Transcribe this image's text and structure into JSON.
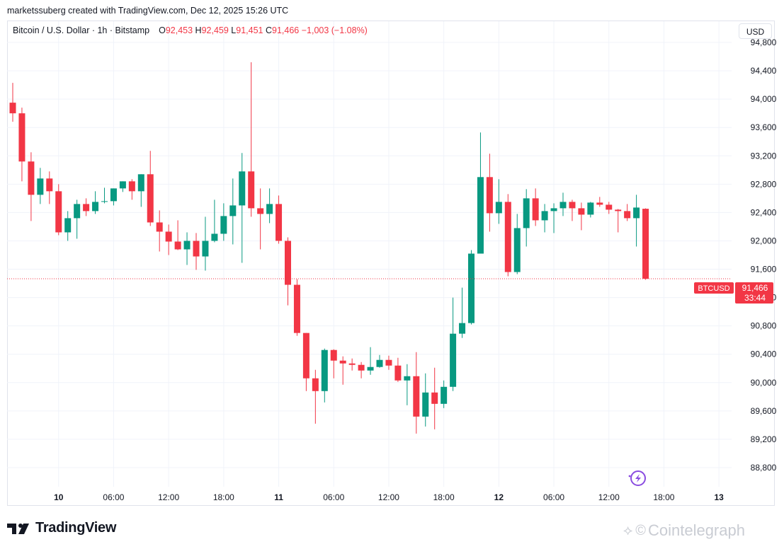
{
  "attribution": "marketssuberg created with TradingView.com, Dec 12, 2025 15:26 UTC",
  "legend": {
    "symbol": "Bitcoin / U.S. Dollar · 1h · Bitstamp",
    "o_label": "O",
    "o_value": "92,453",
    "h_label": "H",
    "h_value": "92,459",
    "l_label": "L",
    "l_value": "91,451",
    "c_label": "C",
    "c_value": "91,466",
    "change": "−1,003 (−1.08%)"
  },
  "currency_button": "USD",
  "price_tag": {
    "symbol": "BTCUSD",
    "price": "91,466",
    "countdown": "33:44"
  },
  "footer": {
    "brand": "TradingView",
    "watermark": "Cointelegraph"
  },
  "colors": {
    "up": "#089981",
    "down": "#f23645",
    "grid": "#f0f3fa",
    "text": "#131722",
    "watermark": "#c9ccd3",
    "badge": "#8a4ce0"
  },
  "icons": {
    "tv_logo": "tradingview-logo-icon",
    "lightning": "lightning-badge-icon",
    "ct": "cointelegraph-icon"
  },
  "chart_data": {
    "type": "candlestick",
    "title": "Bitcoin / U.S. Dollar · 1h · Bitstamp",
    "ylim": [
      88600,
      94800
    ],
    "y_ticks": [
      88800,
      89200,
      89600,
      90000,
      90400,
      90800,
      91200,
      91600,
      92000,
      92400,
      92800,
      93200,
      93600,
      94000,
      94400,
      94800
    ],
    "y_tick_labels": [
      "88,800",
      "89,200",
      "89,600",
      "90,000",
      "90,400",
      "90,800",
      "91,200",
      "91,600",
      "92,000",
      "92,400",
      "92,800",
      "93,200",
      "93,600",
      "94,000",
      "94,400",
      "94,800"
    ],
    "x_ticks": [
      {
        "label": "10",
        "bold": true,
        "bar": 5
      },
      {
        "label": "06:00",
        "bold": false,
        "bar": 11
      },
      {
        "label": "12:00",
        "bold": false,
        "bar": 17
      },
      {
        "label": "18:00",
        "bold": false,
        "bar": 23
      },
      {
        "label": "11",
        "bold": true,
        "bar": 29
      },
      {
        "label": "06:00",
        "bold": false,
        "bar": 35
      },
      {
        "label": "12:00",
        "bold": false,
        "bar": 41
      },
      {
        "label": "18:00",
        "bold": false,
        "bar": 47
      },
      {
        "label": "12",
        "bold": true,
        "bar": 53
      },
      {
        "label": "06:00",
        "bold": false,
        "bar": 59
      },
      {
        "label": "12:00",
        "bold": false,
        "bar": 65
      },
      {
        "label": "18:00",
        "bold": false,
        "bar": 71
      },
      {
        "label": "13",
        "bold": true,
        "bar": 77
      }
    ],
    "last_price": 91466,
    "candles": [
      {
        "o": 93950,
        "h": 94230,
        "l": 93680,
        "c": 93800
      },
      {
        "o": 93800,
        "h": 93880,
        "l": 92840,
        "c": 93120
      },
      {
        "o": 93120,
        "h": 93250,
        "l": 92280,
        "c": 92650
      },
      {
        "o": 92650,
        "h": 93030,
        "l": 92520,
        "c": 92880
      },
      {
        "o": 92880,
        "h": 92980,
        "l": 92520,
        "c": 92700
      },
      {
        "o": 92700,
        "h": 92800,
        "l": 92080,
        "c": 92120
      },
      {
        "o": 92120,
        "h": 92420,
        "l": 92000,
        "c": 92320
      },
      {
        "o": 92320,
        "h": 92580,
        "l": 92030,
        "c": 92520
      },
      {
        "o": 92520,
        "h": 92600,
        "l": 92350,
        "c": 92420
      },
      {
        "o": 92420,
        "h": 92700,
        "l": 92380,
        "c": 92550
      },
      {
        "o": 92550,
        "h": 92750,
        "l": 92530,
        "c": 92560
      },
      {
        "o": 92560,
        "h": 92740,
        "l": 92500,
        "c": 92740
      },
      {
        "o": 92740,
        "h": 92840,
        "l": 92690,
        "c": 92840
      },
      {
        "o": 92840,
        "h": 92870,
        "l": 92580,
        "c": 92700
      },
      {
        "o": 92700,
        "h": 92940,
        "l": 92480,
        "c": 92940
      },
      {
        "o": 92940,
        "h": 93270,
        "l": 92210,
        "c": 92260
      },
      {
        "o": 92260,
        "h": 92430,
        "l": 91850,
        "c": 92130
      },
      {
        "o": 92130,
        "h": 92230,
        "l": 91800,
        "c": 91990
      },
      {
        "o": 91990,
        "h": 92290,
        "l": 91870,
        "c": 91880
      },
      {
        "o": 91880,
        "h": 92120,
        "l": 91660,
        "c": 92000
      },
      {
        "o": 92000,
        "h": 92110,
        "l": 91590,
        "c": 91780
      },
      {
        "o": 91780,
        "h": 92340,
        "l": 91580,
        "c": 92000
      },
      {
        "o": 92000,
        "h": 92580,
        "l": 91980,
        "c": 92100
      },
      {
        "o": 92100,
        "h": 92530,
        "l": 92000,
        "c": 92350
      },
      {
        "o": 92350,
        "h": 92880,
        "l": 91950,
        "c": 92500
      },
      {
        "o": 92500,
        "h": 93240,
        "l": 91690,
        "c": 92980
      },
      {
        "o": 92980,
        "h": 94520,
        "l": 92340,
        "c": 92460
      },
      {
        "o": 92460,
        "h": 92740,
        "l": 91880,
        "c": 92380
      },
      {
        "o": 92380,
        "h": 92740,
        "l": 92250,
        "c": 92520
      },
      {
        "o": 92520,
        "h": 92640,
        "l": 91960,
        "c": 92000
      },
      {
        "o": 92000,
        "h": 92050,
        "l": 91090,
        "c": 91380
      },
      {
        "o": 91380,
        "h": 91460,
        "l": 90660,
        "c": 90700
      },
      {
        "o": 90700,
        "h": 90700,
        "l": 89880,
        "c": 90060
      },
      {
        "o": 90060,
        "h": 90180,
        "l": 89420,
        "c": 89880
      },
      {
        "o": 89880,
        "h": 90480,
        "l": 89720,
        "c": 90460
      },
      {
        "o": 90460,
        "h": 90470,
        "l": 90060,
        "c": 90310
      },
      {
        "o": 90310,
        "h": 90370,
        "l": 89970,
        "c": 90270
      },
      {
        "o": 90270,
        "h": 90340,
        "l": 90170,
        "c": 90250
      },
      {
        "o": 90250,
        "h": 90290,
        "l": 90060,
        "c": 90170
      },
      {
        "o": 90170,
        "h": 90500,
        "l": 90110,
        "c": 90220
      },
      {
        "o": 90220,
        "h": 90390,
        "l": 90210,
        "c": 90320
      },
      {
        "o": 90320,
        "h": 90380,
        "l": 90180,
        "c": 90240
      },
      {
        "o": 90240,
        "h": 90350,
        "l": 90010,
        "c": 90030
      },
      {
        "o": 90030,
        "h": 90260,
        "l": 89680,
        "c": 90090
      },
      {
        "o": 90090,
        "h": 90430,
        "l": 89280,
        "c": 89520
      },
      {
        "o": 89520,
        "h": 90130,
        "l": 89380,
        "c": 89860
      },
      {
        "o": 89860,
        "h": 90210,
        "l": 89340,
        "c": 89700
      },
      {
        "o": 89700,
        "h": 90030,
        "l": 89640,
        "c": 89940
      },
      {
        "o": 89940,
        "h": 91200,
        "l": 89880,
        "c": 90690
      },
      {
        "o": 90690,
        "h": 91340,
        "l": 90630,
        "c": 90840
      },
      {
        "o": 90840,
        "h": 91870,
        "l": 90820,
        "c": 91820
      },
      {
        "o": 91820,
        "h": 93530,
        "l": 91850,
        "c": 92900
      },
      {
        "o": 92900,
        "h": 93230,
        "l": 92130,
        "c": 92390
      },
      {
        "o": 92390,
        "h": 92870,
        "l": 92240,
        "c": 92550
      },
      {
        "o": 92550,
        "h": 92660,
        "l": 91500,
        "c": 91560
      },
      {
        "o": 91560,
        "h": 92380,
        "l": 91530,
        "c": 92180
      },
      {
        "o": 92180,
        "h": 92730,
        "l": 91920,
        "c": 92600
      },
      {
        "o": 92600,
        "h": 92740,
        "l": 92210,
        "c": 92290
      },
      {
        "o": 92290,
        "h": 92520,
        "l": 92120,
        "c": 92420
      },
      {
        "o": 92420,
        "h": 92530,
        "l": 92110,
        "c": 92460
      },
      {
        "o": 92460,
        "h": 92680,
        "l": 92350,
        "c": 92550
      },
      {
        "o": 92550,
        "h": 92580,
        "l": 92280,
        "c": 92460
      },
      {
        "o": 92460,
        "h": 92540,
        "l": 92150,
        "c": 92370
      },
      {
        "o": 92370,
        "h": 92550,
        "l": 92330,
        "c": 92540
      },
      {
        "o": 92540,
        "h": 92620,
        "l": 92480,
        "c": 92510
      },
      {
        "o": 92510,
        "h": 92550,
        "l": 92380,
        "c": 92440
      },
      {
        "o": 92440,
        "h": 92450,
        "l": 92120,
        "c": 92420
      },
      {
        "o": 92420,
        "h": 92520,
        "l": 92280,
        "c": 92320
      },
      {
        "o": 92320,
        "h": 92650,
        "l": 91920,
        "c": 92470
      },
      {
        "o": 92453,
        "h": 92459,
        "l": 91451,
        "c": 91466
      }
    ]
  }
}
